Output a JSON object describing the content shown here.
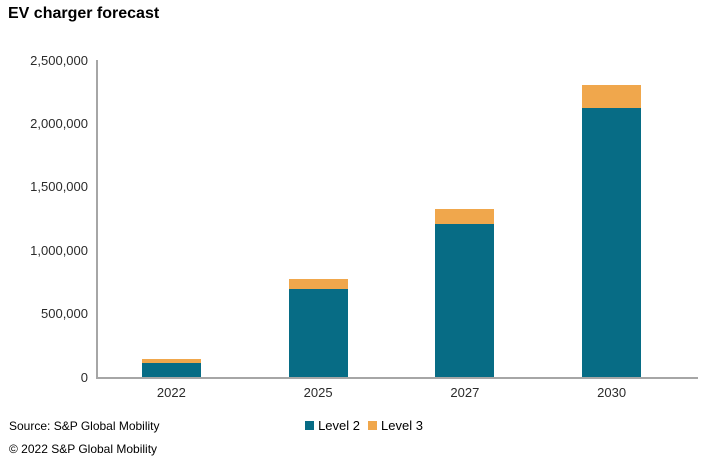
{
  "title": "EV charger forecast",
  "footer": {
    "source_line": "Source: S&P Global Mobility",
    "copyright_line": "© 2022 S&P Global Mobility"
  },
  "colors": {
    "level2": "#076c85",
    "level3": "#f0a74c",
    "axis": "#a6a6a6",
    "tick_text": "#2b2b2b"
  },
  "chart_data": {
    "type": "bar",
    "stacked": true,
    "title": "EV charger forecast",
    "categories": [
      "2022",
      "2025",
      "2027",
      "2030"
    ],
    "series": [
      {
        "name": "Level 2",
        "color_key": "level2",
        "values": [
          110000,
          692000,
          1205000,
          2125000
        ]
      },
      {
        "name": "Level 3",
        "color_key": "level3",
        "values": [
          32000,
          78000,
          118000,
          175000
        ]
      }
    ],
    "totals": [
      142000,
      770000,
      1323000,
      2300000
    ],
    "xlabel": "",
    "ylabel": "",
    "ylim": [
      0,
      2500000
    ],
    "yticks": [
      0,
      500000,
      1000000,
      1500000,
      2000000,
      2500000
    ],
    "ytick_labels": [
      "0",
      "500,000",
      "1,000,000",
      "1,500,000",
      "2,000,000",
      "2,500,000"
    ],
    "grid": false,
    "legend_position": "bottom"
  }
}
